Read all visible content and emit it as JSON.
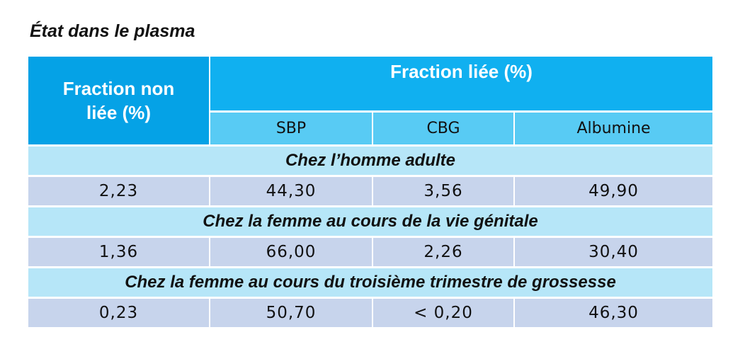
{
  "title": "État dans le plasma",
  "table": {
    "header": {
      "unbound": "Fraction non liée (%)",
      "bound": "Fraction liée (%)",
      "columns": [
        "SBP",
        "CBG",
        "Albumine"
      ]
    },
    "sections": [
      {
        "label": "Chez l’homme adulte",
        "values": [
          "2,23",
          "44,30",
          "3,56",
          "49,90"
        ]
      },
      {
        "label": "Chez la femme au cours de la vie génitale",
        "values": [
          "1,36",
          "66,00",
          "2,26",
          "30,40"
        ]
      },
      {
        "label": "Chez la femme au cours du troisième trimestre de grossesse",
        "values": [
          "0,23",
          "50,70",
          "< 0,20",
          "46,30"
        ]
      }
    ]
  }
}
